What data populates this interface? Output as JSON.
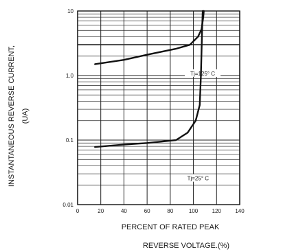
{
  "chart_data": {
    "type": "line",
    "title": "",
    "xlabel": "PERCENT OF RATED PEAK",
    "xlabel_line2": "REVERSE VOLTAGE.(%)",
    "ylabel": "INSTANTANEOUS REVERSE CURRENT,",
    "ylabel_line2": "(UA)",
    "y_scale": "log",
    "xlim": [
      0,
      140
    ],
    "ylim": [
      0.01,
      10
    ],
    "x_ticks": [
      {
        "value": 0,
        "label": "0"
      },
      {
        "value": 20,
        "label": "20"
      },
      {
        "value": 40,
        "label": "40"
      },
      {
        "value": 60,
        "label": "60"
      },
      {
        "value": 80,
        "label": "80"
      },
      {
        "value": 100,
        "label": "100"
      },
      {
        "value": 120,
        "label": "120"
      },
      {
        "value": 140,
        "label": "140"
      }
    ],
    "y_ticks": [
      {
        "value": 0.01,
        "label": "0.01"
      },
      {
        "value": 0.1,
        "label": "0.1"
      },
      {
        "value": 1,
        "label": "1.0"
      },
      {
        "value": 10,
        "label": "10"
      }
    ],
    "grid": true,
    "series": [
      {
        "points": [
          [
            15,
            1.5
          ],
          [
            40,
            1.75
          ],
          [
            60,
            2.1
          ],
          [
            85,
            2.6
          ],
          [
            97,
            3.0
          ],
          [
            104,
            4.0
          ],
          [
            107,
            5.2
          ],
          [
            108.5,
            8.0
          ],
          [
            109,
            10
          ]
        ],
        "annotation": "Tj=125° C",
        "annotation_pos": [
          108,
          1.05
        ]
      },
      {
        "points": [
          [
            15,
            0.078
          ],
          [
            40,
            0.085
          ],
          [
            60,
            0.09
          ],
          [
            85,
            0.1
          ],
          [
            95,
            0.13
          ],
          [
            102,
            0.2
          ],
          [
            105.5,
            0.35
          ],
          [
            106.5,
            1.0
          ],
          [
            107.5,
            5.0
          ],
          [
            108,
            10
          ]
        ],
        "annotation": "Tj=25° C",
        "annotation_pos": [
          104,
          0.025
        ]
      }
    ]
  }
}
